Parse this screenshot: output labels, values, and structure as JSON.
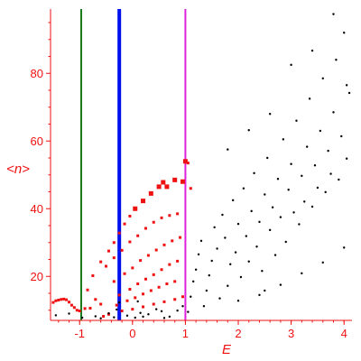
{
  "chart_data": {
    "type": "scatter",
    "title": "",
    "xlabel": "E",
    "ylabel": "<n>",
    "xlim": [
      -1.55,
      4.15
    ],
    "ylim": [
      7,
      99
    ],
    "x_ticks": [
      -1,
      0,
      1,
      2,
      3,
      4
    ],
    "x_tick_labels": [
      "-1",
      "0",
      "1",
      "2",
      "3",
      "4"
    ],
    "y_ticks": [
      20,
      40,
      60,
      80
    ],
    "y_tick_labels": [
      "20",
      "40",
      "60",
      "80"
    ],
    "grid": false,
    "vertical_lines": [
      {
        "x": -0.97,
        "color": "#1a7a1a",
        "width": "thin"
      },
      {
        "x": -0.25,
        "color": "#0011ee",
        "width": "thick"
      },
      {
        "x": 1.0,
        "color": "#dd22dd",
        "width": "thin"
      }
    ],
    "series": [
      {
        "color": "#ee1111",
        "marker": "square",
        "points": [
          [
            -1.5,
            12.3
          ],
          [
            -1.45,
            12.8
          ],
          [
            -1.4,
            13.0
          ],
          [
            -1.35,
            13.2
          ],
          [
            -1.3,
            13.3
          ],
          [
            -1.25,
            13.1
          ],
          [
            -1.2,
            12.4
          ],
          [
            -1.15,
            11.5
          ],
          [
            -1.1,
            10.8
          ],
          [
            -1.05,
            10.0
          ],
          [
            -1.0,
            9.8
          ],
          [
            -0.9,
            10.5
          ],
          [
            -0.8,
            10.6
          ],
          [
            -0.85,
            16.0
          ],
          [
            -0.75,
            20.2
          ],
          [
            -0.6,
            24.3
          ],
          [
            -0.45,
            27.5
          ],
          [
            -0.35,
            30.0
          ],
          [
            -0.25,
            32.8
          ],
          [
            -0.15,
            35.5
          ],
          [
            -0.05,
            37.8
          ],
          [
            0.05,
            40.0
          ],
          [
            0.2,
            42.3
          ],
          [
            0.35,
            44.5
          ],
          [
            0.5,
            46.5
          ],
          [
            0.58,
            47.8
          ],
          [
            0.65,
            46.5
          ],
          [
            0.8,
            48.5
          ],
          [
            0.95,
            48.0
          ],
          [
            1.1,
            46.0
          ],
          [
            -0.5,
            23.0
          ],
          [
            -0.35,
            25.5
          ],
          [
            -0.2,
            27.7
          ],
          [
            -0.05,
            30.2
          ],
          [
            0.1,
            32.0
          ],
          [
            0.25,
            34.2
          ],
          [
            0.4,
            36.0
          ],
          [
            0.55,
            37.3
          ],
          [
            0.7,
            38.0
          ],
          [
            0.85,
            38.5
          ],
          [
            -0.35,
            18.5
          ],
          [
            -0.15,
            20.8
          ],
          [
            0.0,
            22.5
          ],
          [
            0.15,
            24.7
          ],
          [
            0.3,
            26.2
          ],
          [
            0.45,
            27.8
          ],
          [
            0.6,
            29.3
          ],
          [
            0.75,
            30.5
          ],
          [
            0.9,
            31.5
          ],
          [
            -0.25,
            14.5
          ],
          [
            -0.05,
            16.2
          ],
          [
            0.1,
            17.8
          ],
          [
            0.25,
            19.2
          ],
          [
            0.4,
            20.5
          ],
          [
            0.55,
            22.0
          ],
          [
            0.7,
            23.5
          ],
          [
            0.85,
            24.5
          ],
          [
            -0.3,
            11.5
          ],
          [
            -0.1,
            12.8
          ],
          [
            0.05,
            13.7
          ],
          [
            0.2,
            14.8
          ],
          [
            0.35,
            15.8
          ],
          [
            0.5,
            16.8
          ],
          [
            0.65,
            17.8
          ],
          [
            0.8,
            18.5
          ],
          [
            -0.45,
            8.8
          ],
          [
            -0.2,
            9.8
          ],
          [
            0.0,
            10.3
          ],
          [
            0.2,
            11.0
          ],
          [
            0.4,
            11.8
          ],
          [
            0.6,
            12.5
          ],
          [
            0.8,
            13.2
          ],
          [
            0.95,
            14.0
          ],
          [
            -0.6,
            11.8
          ],
          [
            -0.7,
            13.2
          ],
          [
            -0.55,
            8.2
          ],
          [
            1.0,
            54.0
          ],
          [
            1.05,
            53.5
          ]
        ]
      },
      {
        "color": "#000000",
        "marker": "dot",
        "points": [
          [
            -1.45,
            8.5
          ],
          [
            -1.2,
            9.0
          ],
          [
            -0.95,
            7.8
          ],
          [
            -0.7,
            8.2
          ],
          [
            -0.45,
            9.1
          ],
          [
            -0.3,
            10.2
          ],
          [
            -0.1,
            8.4
          ],
          [
            0.05,
            7.8
          ],
          [
            0.15,
            9.2
          ],
          [
            0.3,
            8.8
          ],
          [
            0.45,
            10.3
          ],
          [
            0.55,
            9.7
          ],
          [
            0.7,
            8.1
          ],
          [
            0.85,
            9.9
          ],
          [
            0.95,
            11.2
          ],
          [
            -0.6,
            7.6
          ],
          [
            -0.35,
            7.9
          ],
          [
            0.2,
            8.1
          ],
          [
            0.6,
            7.7
          ],
          [
            -0.25,
            12.3
          ],
          [
            0.1,
            12.6
          ],
          [
            1.05,
            9.5
          ],
          [
            1.1,
            14.0
          ],
          [
            1.15,
            18.5
          ],
          [
            1.2,
            22.0
          ],
          [
            1.25,
            26.5
          ],
          [
            1.3,
            30.5
          ],
          [
            1.35,
            11.2
          ],
          [
            1.4,
            15.8
          ],
          [
            1.45,
            20.3
          ],
          [
            1.5,
            24.6
          ],
          [
            1.55,
            34.5
          ],
          [
            1.6,
            28.2
          ],
          [
            1.65,
            13.5
          ],
          [
            1.7,
            38.2
          ],
          [
            1.75,
            31.4
          ],
          [
            1.8,
            17.2
          ],
          [
            1.85,
            23.6
          ],
          [
            1.9,
            42.5
          ],
          [
            1.95,
            27.1
          ],
          [
            2.0,
            35.5
          ],
          [
            2.05,
            19.8
          ],
          [
            2.1,
            46.0
          ],
          [
            2.15,
            31.9
          ],
          [
            2.2,
            24.4
          ],
          [
            2.25,
            39.3
          ],
          [
            2.3,
            50.5
          ],
          [
            2.35,
            28.8
          ],
          [
            2.4,
            36.1
          ],
          [
            2.45,
            21.6
          ],
          [
            2.5,
            44.2
          ],
          [
            2.55,
            55.0
          ],
          [
            2.6,
            33.7
          ],
          [
            2.65,
            40.4
          ],
          [
            2.7,
            26.3
          ],
          [
            2.75,
            48.8
          ],
          [
            2.8,
            37.5
          ],
          [
            2.85,
            60.5
          ],
          [
            2.9,
            30.2
          ],
          [
            2.95,
            45.6
          ],
          [
            3.0,
            53.2
          ],
          [
            3.05,
            38.9
          ],
          [
            3.1,
            66.0
          ],
          [
            3.15,
            35.4
          ],
          [
            3.2,
            49.7
          ],
          [
            3.25,
            42.1
          ],
          [
            3.3,
            58.3
          ],
          [
            3.35,
            72.5
          ],
          [
            3.4,
            40.6
          ],
          [
            3.45,
            52.8
          ],
          [
            3.5,
            46.2
          ],
          [
            3.55,
            63.0
          ],
          [
            3.6,
            78.5
          ],
          [
            3.65,
            44.9
          ],
          [
            3.7,
            57.1
          ],
          [
            3.75,
            50.3
          ],
          [
            3.8,
            68.5
          ],
          [
            3.85,
            84.0
          ],
          [
            3.9,
            48.6
          ],
          [
            3.95,
            61.4
          ],
          [
            4.0,
            92.0
          ],
          [
            4.05,
            54.8
          ],
          [
            4.1,
            74.2
          ],
          [
            2.0,
            12.8
          ],
          [
            2.4,
            14.5
          ],
          [
            2.8,
            17.5
          ],
          [
            3.2,
            20.9
          ],
          [
            3.6,
            24.1
          ],
          [
            4.0,
            28.5
          ],
          [
            2.2,
            63.2
          ],
          [
            2.6,
            68.0
          ],
          [
            3.0,
            82.5
          ],
          [
            3.4,
            86.7
          ],
          [
            3.8,
            97.5
          ],
          [
            4.05,
            76.5
          ],
          [
            1.8,
            57.5
          ],
          [
            2.5,
            15.8
          ]
        ]
      }
    ]
  }
}
